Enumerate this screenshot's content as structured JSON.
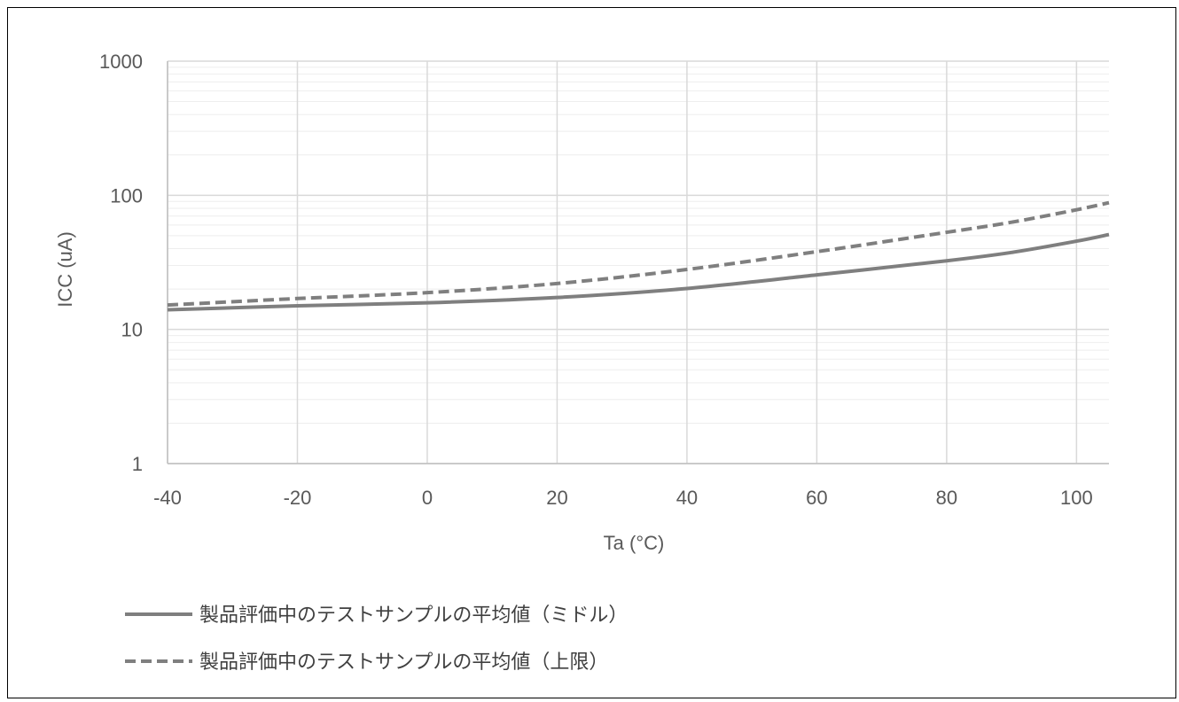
{
  "chart_data": {
    "type": "line",
    "xlabel": "Ta (°C)",
    "ylabel": "ICC (uA)",
    "x_scale": "linear",
    "y_scale": "log",
    "xlim": [
      -40,
      105
    ],
    "ylim": [
      1,
      1000
    ],
    "x_ticks": [
      "-40",
      "-20",
      "0",
      "20",
      "40",
      "60",
      "80",
      "100"
    ],
    "y_ticks": [
      "1",
      "10",
      "100",
      "1000"
    ],
    "grid": true,
    "legend_position": "bottom-left",
    "series": [
      {
        "name": "製品評価中のテストサンプルの平均値（ミドル）",
        "style": "solid",
        "color": "#7f7f7f",
        "x": [
          -40,
          -20,
          0,
          20,
          40,
          60,
          80,
          90,
          100,
          105
        ],
        "y": [
          14,
          15,
          15.8,
          17.3,
          20.2,
          25.5,
          32.5,
          37.5,
          45.5,
          51
        ]
      },
      {
        "name": "製品評価中のテストサンプルの平均値（上限）",
        "style": "dashed",
        "color": "#7f7f7f",
        "x": [
          -40,
          -20,
          0,
          20,
          40,
          60,
          80,
          90,
          100,
          105
        ],
        "y": [
          15.2,
          17,
          18.8,
          22,
          28,
          38,
          53,
          63,
          78,
          88
        ]
      }
    ]
  }
}
